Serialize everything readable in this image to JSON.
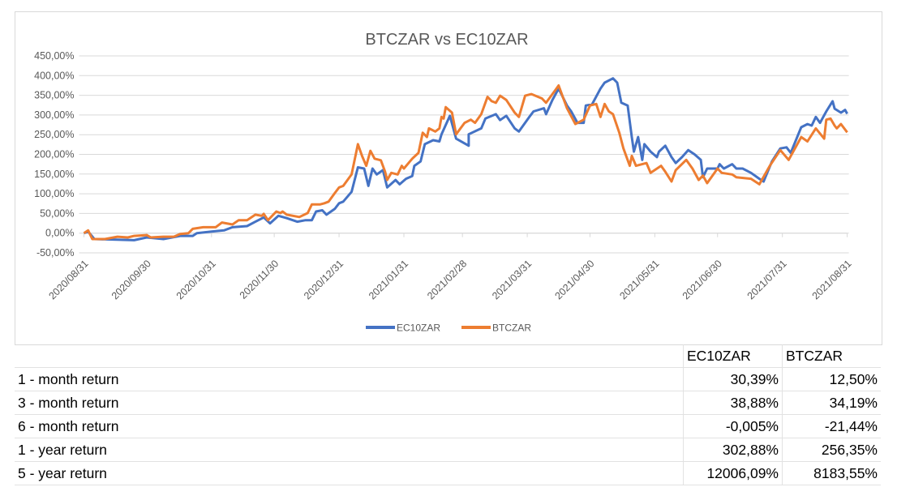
{
  "chart_data": {
    "type": "line",
    "title": "BTCZAR vs EC10ZAR",
    "xlabel": "",
    "ylabel": "",
    "x_unit": "days since 2020/08/31",
    "xlim": [
      0,
      365
    ],
    "ylim": [
      -50,
      450
    ],
    "y_ticks": [
      "450,00%",
      "400,00%",
      "350,00%",
      "300,00%",
      "250,00%",
      "200,00%",
      "150,00%",
      "100,00%",
      "50,00%",
      "0,00%",
      "-50,00%"
    ],
    "y_tick_values": [
      450,
      400,
      350,
      300,
      250,
      200,
      150,
      100,
      50,
      0,
      -50
    ],
    "x_ticks": [
      "2020/08/31",
      "2020/09/30",
      "2020/10/31",
      "2020/11/30",
      "2020/12/31",
      "2021/01/31",
      "2021/02/28",
      "2021/03/31",
      "2021/04/30",
      "2021/05/31",
      "2021/06/30",
      "2021/07/31",
      "2021/08/31"
    ],
    "x_tick_values": [
      0,
      30,
      61,
      91,
      122,
      153,
      181,
      212,
      242,
      273,
      303,
      334,
      365
    ],
    "grid": true,
    "legend_position": "bottom",
    "series": [
      {
        "name": "EC10ZAR",
        "color": "#4472c4",
        "x": [
          0,
          2,
          5,
          24,
          30,
          38,
          46,
          52,
          54,
          61,
          67,
          71,
          78,
          82,
          86,
          89,
          93,
          97,
          102,
          106,
          109,
          111,
          114,
          116,
          120,
          122,
          124,
          128,
          131,
          134,
          136,
          138,
          140,
          143,
          145,
          149,
          151,
          154,
          157,
          158,
          161,
          163,
          167,
          170,
          171,
          175,
          178,
          184,
          184,
          190,
          192,
          197,
          199,
          202,
          206,
          208,
          213,
          215,
          220,
          221,
          224,
          227,
          231,
          233,
          236,
          239,
          240,
          243,
          247,
          249,
          253,
          255,
          257,
          260,
          262,
          263,
          265,
          267,
          268,
          271,
          274,
          275,
          278,
          281,
          283,
          286,
          289,
          292,
          295,
          296,
          298,
          303,
          304,
          306,
          310,
          312,
          315,
          319,
          323,
          325,
          329,
          333,
          336,
          338,
          343,
          346,
          348,
          350,
          352,
          355,
          358,
          359,
          362,
          364,
          365
        ],
        "y": [
          0,
          4,
          -15,
          -18,
          -11,
          -15,
          -7,
          -7,
          0,
          4,
          7,
          15,
          18,
          29,
          40,
          25,
          44,
          38,
          29,
          33,
          33,
          55,
          58,
          47,
          62,
          76,
          80,
          105,
          167,
          164,
          120,
          164,
          149,
          160,
          116,
          135,
          124,
          138,
          145,
          171,
          182,
          226,
          236,
          233,
          251,
          298,
          240,
          222,
          251,
          266,
          291,
          302,
          287,
          298,
          266,
          258,
          295,
          309,
          317,
          302,
          338,
          367,
          324,
          309,
          280,
          280,
          324,
          327,
          367,
          382,
          393,
          382,
          331,
          324,
          244,
          207,
          244,
          186,
          226,
          207,
          193,
          207,
          222,
          193,
          178,
          193,
          211,
          200,
          186,
          142,
          164,
          164,
          175,
          164,
          175,
          164,
          164,
          153,
          138,
          131,
          182,
          215,
          218,
          204,
          269,
          277,
          273,
          295,
          280,
          309,
          335,
          316,
          306,
          313,
          303
        ]
      },
      {
        "name": "BTCZAR",
        "color": "#ed7d31",
        "x": [
          0,
          2,
          4,
          10,
          16,
          21,
          24,
          30,
          32,
          38,
          43,
          46,
          50,
          52,
          57,
          63,
          66,
          71,
          74,
          78,
          82,
          85,
          86,
          88,
          92,
          94,
          95,
          97,
          103,
          107,
          109,
          113,
          115,
          117,
          120,
          122,
          124,
          128,
          131,
          133,
          135,
          137,
          139,
          142,
          144,
          145,
          147,
          150,
          152,
          153,
          157,
          160,
          162,
          164,
          165,
          168,
          170,
          171,
          172,
          173,
          176,
          178,
          182,
          185,
          187,
          190,
          193,
          195,
          197,
          199,
          202,
          206,
          208,
          211,
          214,
          219,
          221,
          225,
          227,
          231,
          235,
          239,
          242,
          245,
          247,
          249,
          251,
          253,
          256,
          258,
          261,
          262,
          264,
          269,
          271,
          276,
          278,
          281,
          283,
          288,
          291,
          294,
          296,
          298,
          303,
          305,
          310,
          312,
          319,
          323,
          328,
          333,
          337,
          343,
          346,
          350,
          354,
          355,
          357,
          359,
          360,
          362,
          365
        ],
        "y": [
          0,
          7,
          -15,
          -15,
          -9,
          -11,
          -7,
          -5,
          -11,
          -9,
          -9,
          -2,
          0,
          11,
          15,
          15,
          27,
          22,
          33,
          33,
          47,
          44,
          49,
          33,
          55,
          51,
          55,
          47,
          41,
          51,
          73,
          73,
          76,
          80,
          102,
          116,
          120,
          149,
          226,
          196,
          171,
          209,
          189,
          185,
          156,
          135,
          153,
          149,
          171,
          164,
          189,
          204,
          255,
          244,
          266,
          258,
          266,
          295,
          291,
          320,
          306,
          251,
          280,
          288,
          280,
          302,
          346,
          335,
          331,
          349,
          338,
          306,
          295,
          349,
          353,
          342,
          331,
          360,
          375,
          317,
          277,
          288,
          324,
          328,
          295,
          328,
          309,
          302,
          255,
          215,
          171,
          196,
          171,
          178,
          153,
          171,
          156,
          131,
          160,
          186,
          164,
          135,
          146,
          127,
          164,
          153,
          149,
          142,
          138,
          124,
          171,
          211,
          186,
          244,
          233,
          266,
          240,
          288,
          291,
          273,
          266,
          277,
          256
        ]
      }
    ]
  },
  "table": {
    "headers": [
      "",
      "EC10ZAR",
      "BTCZAR"
    ],
    "rows": [
      {
        "label": "1 - month return",
        "ec10zar": "30,39%",
        "btczar": "12,50%"
      },
      {
        "label": "3 - month return",
        "ec10zar": "38,88%",
        "btczar": "34,19%"
      },
      {
        "label": "6 - month return",
        "ec10zar": "-0,005%",
        "btczar": "-21,44%"
      },
      {
        "label": "1 - year return",
        "ec10zar": "302,88%",
        "btczar": "256,35%"
      },
      {
        "label": "5 - year return",
        "ec10zar": "12006,09%",
        "btczar": "8183,55%"
      }
    ]
  }
}
